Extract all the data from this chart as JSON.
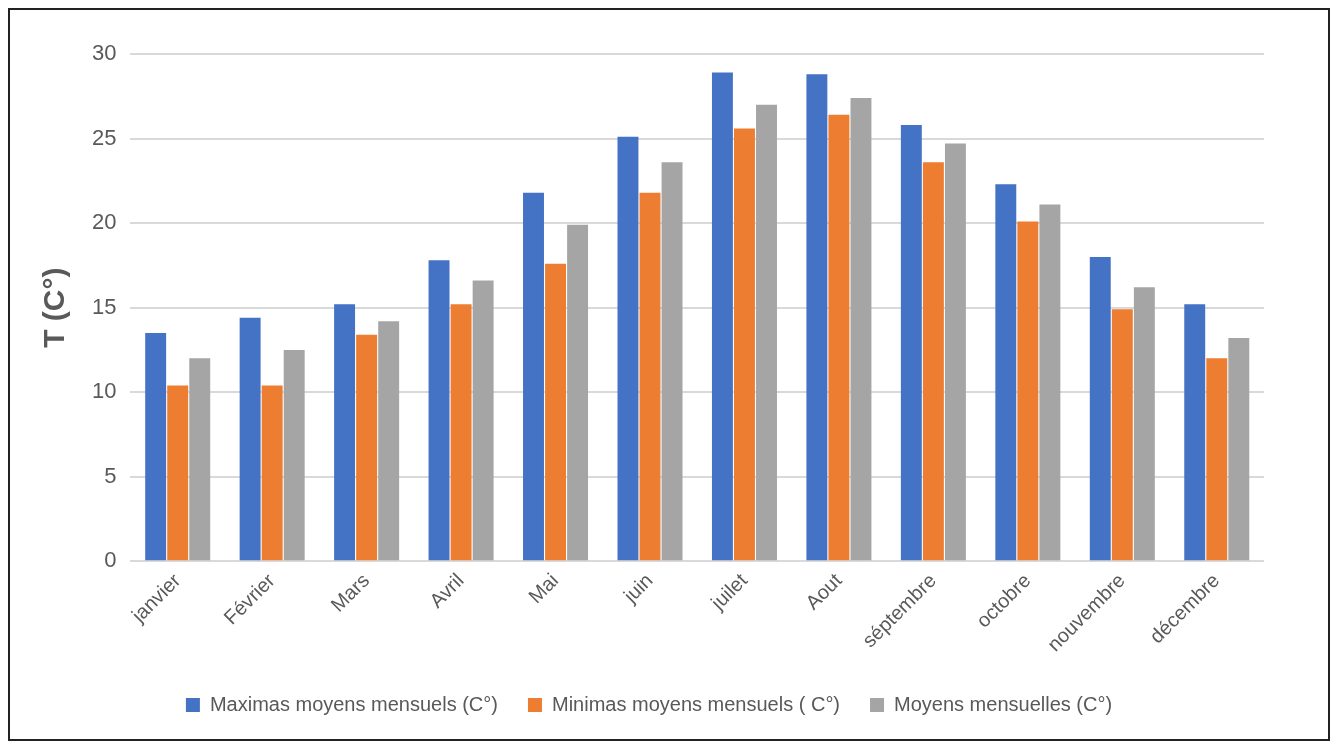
{
  "chart_data": {
    "type": "bar",
    "ylabel": "T (C°)",
    "categories": [
      "janvier",
      "Février",
      "Mars",
      "Avril",
      "Mai",
      "juin",
      "juilet",
      "Aout",
      "séptembre",
      "octobre",
      "nouvembre",
      "décembre"
    ],
    "series": [
      {
        "name": "Maximas moyens mensuels (C°)",
        "color": "#4472c4",
        "values": [
          13.5,
          14.4,
          15.2,
          17.8,
          21.8,
          25.1,
          28.9,
          28.8,
          25.8,
          22.3,
          18.0,
          15.2
        ]
      },
      {
        "name": "Minimas moyens mensuels ( C°)",
        "color": "#ed7d31",
        "values": [
          10.4,
          10.4,
          13.4,
          15.2,
          17.6,
          21.8,
          25.6,
          26.4,
          23.6,
          20.1,
          14.9,
          12.0
        ]
      },
      {
        "name": "Moyens mensuelles (C°)",
        "color": "#a5a5a5",
        "values": [
          12.0,
          12.5,
          14.2,
          16.6,
          19.9,
          23.6,
          27.0,
          27.4,
          24.7,
          21.1,
          16.2,
          13.2
        ]
      }
    ],
    "ylim": [
      0,
      30
    ],
    "yticks": [
      0,
      5,
      10,
      15,
      20,
      25,
      30
    ],
    "grid": "y",
    "legend": "bottom"
  }
}
